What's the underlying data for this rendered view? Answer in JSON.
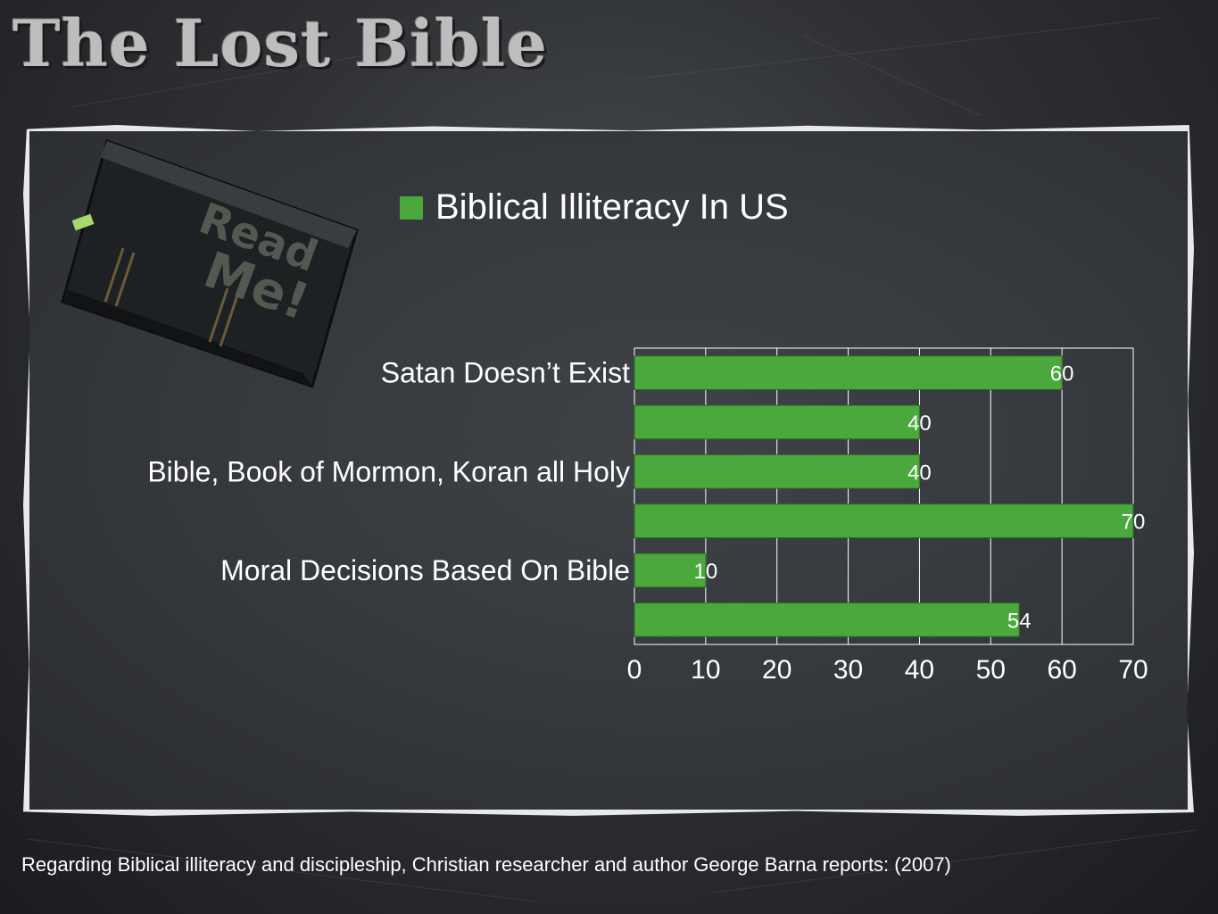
{
  "slide": {
    "title": "The Lost Bible",
    "footnote": "Regarding Biblical illiteracy and discipleship, Christian researcher and author George Barna reports: (2007)"
  },
  "colors": {
    "bar": "#4aa83c",
    "text": "#ffffff",
    "grid": "#ffffff"
  },
  "book": {
    "label": "Read Me!"
  },
  "chart_data": {
    "type": "bar",
    "orientation": "horizontal",
    "legend": "top",
    "grid": true,
    "xlim": [
      0,
      70
    ],
    "xticks": [
      "0",
      "10",
      "20",
      "30",
      "40",
      "50",
      "60",
      "70"
    ],
    "categories": [
      "Satan Doesn’t Exist",
      "",
      "Bible, Book of Mormon, Koran all Holy",
      "",
      "Moral Decisions Based On Bible",
      ""
    ],
    "series": [
      {
        "name": "Biblical Illiteracy In US",
        "values": [
          60,
          40,
          40,
          70,
          10,
          54
        ]
      }
    ]
  }
}
